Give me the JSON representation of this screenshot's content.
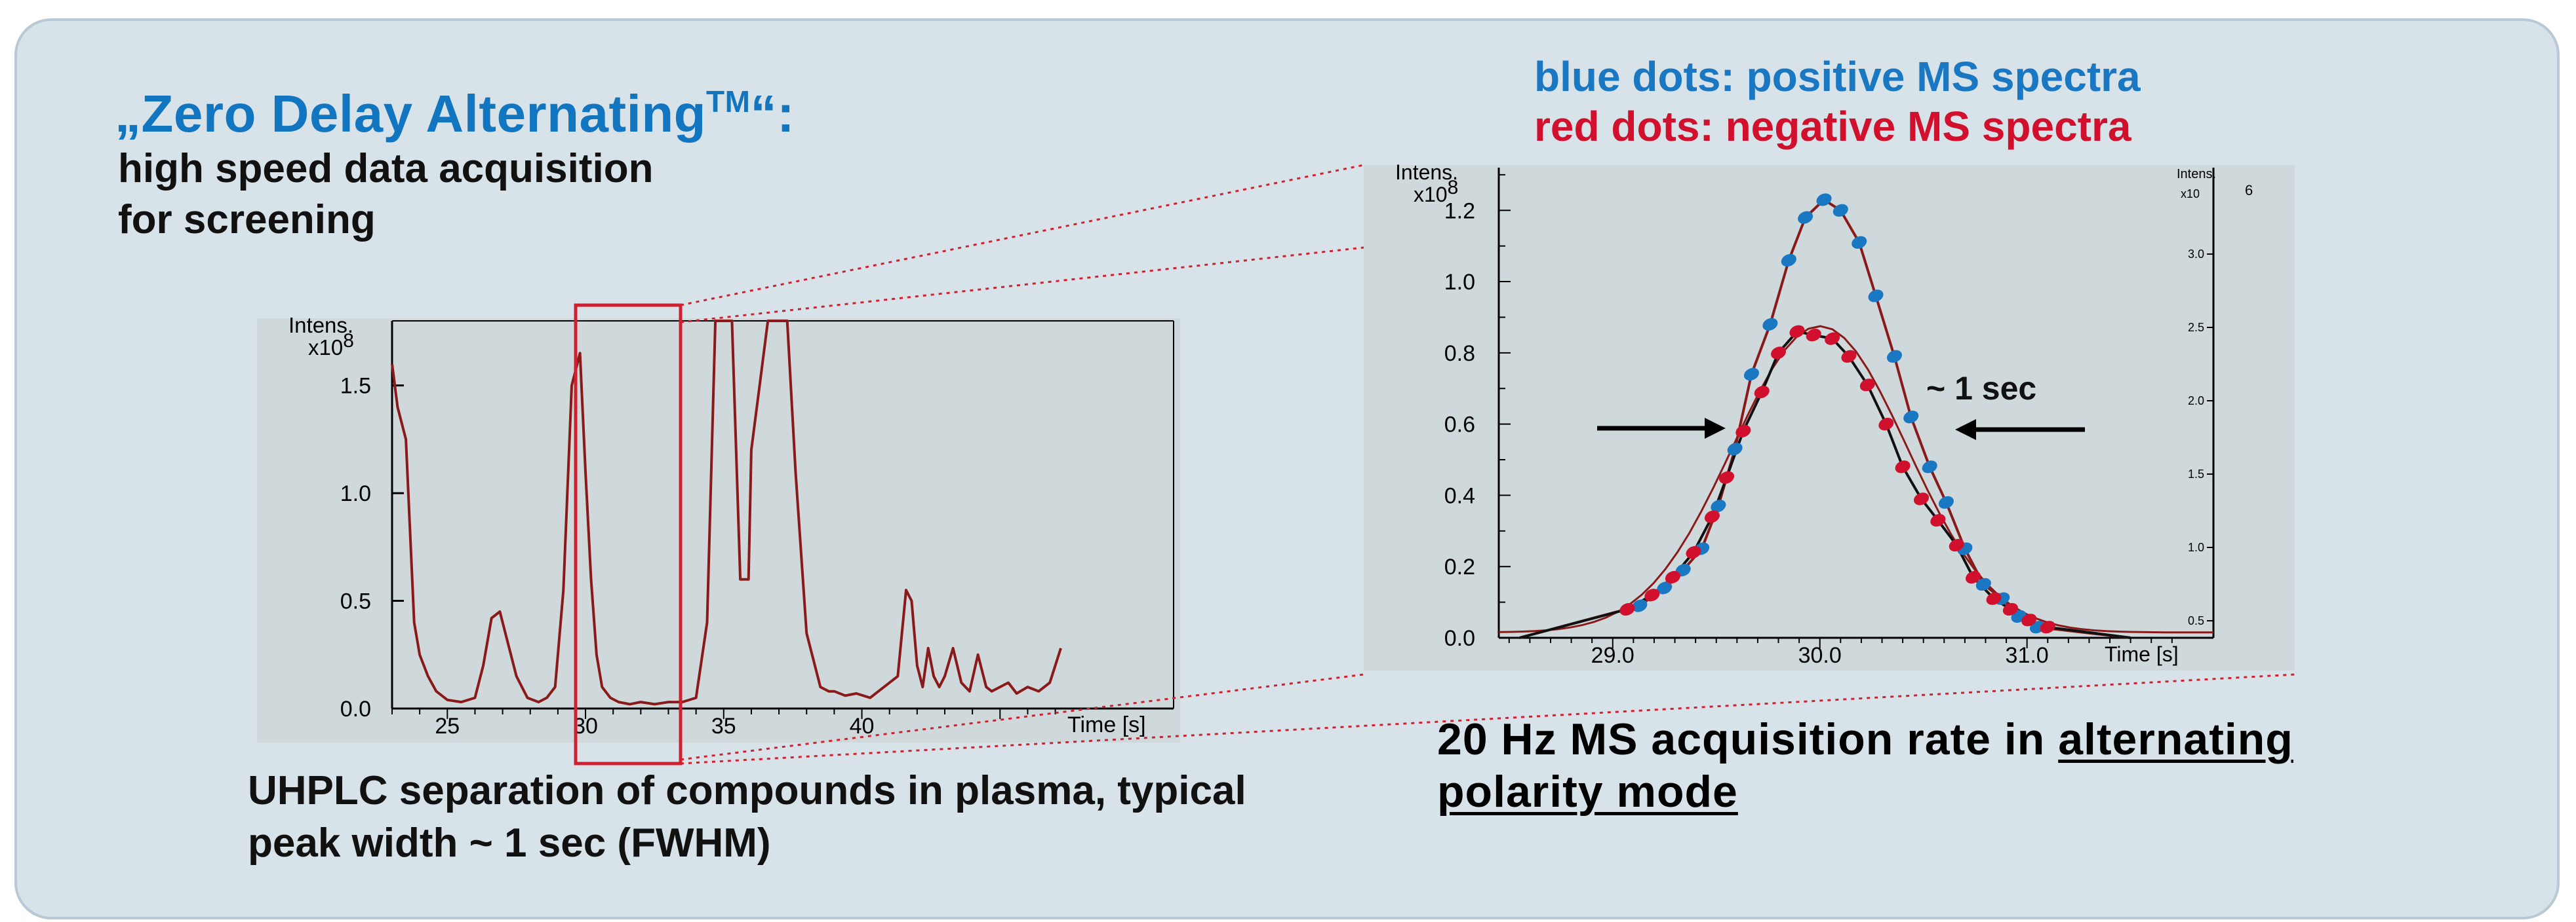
{
  "title": {
    "main_prefix": "„Zero Delay Alternating",
    "main_tm": "TM",
    "main_suffix": "“:",
    "line1": "high speed data acquisition",
    "line2": "for screening"
  },
  "legend": {
    "blue": "blue dots: positive MS spectra",
    "red": "red dots: negative MS spectra"
  },
  "caption_left": {
    "line1": "UHPLC separation of compounds in plasma, typical",
    "line2": "peak width ~ 1 sec (FWHM)"
  },
  "caption_right": {
    "pre": "20 Hz MS acquisition rate in ",
    "ul1": "alternating",
    "ul2": "polarity mode"
  },
  "colors": {
    "trace": "#8a1a1a",
    "zoom_box": "#d02030",
    "blue_dots": "#1a78c2",
    "red_dots": "#d0102c",
    "plot_bg": "#cfd9db"
  },
  "chart_data": [
    {
      "type": "line",
      "ylabel": "Intens.",
      "y_multiplier": "x10",
      "y_exponent": "8",
      "xlabel": "Time [s]",
      "xlim": [
        23,
        56.5
      ],
      "ylim": [
        0,
        1.8
      ],
      "x_ticks": [
        "25",
        "30",
        "35",
        "40"
      ],
      "y_ticks": [
        "0.0",
        "0.5",
        "1.0",
        "1.5"
      ],
      "series": [
        {
          "x": [
            23.0,
            23.2,
            23.5,
            23.8,
            24.0,
            24.3,
            24.6,
            25.0,
            25.5,
            26.0,
            26.3,
            26.6,
            26.9,
            27.2,
            27.5,
            27.9,
            28.3,
            28.6,
            28.9,
            29.2,
            29.5,
            29.8,
            30.0,
            30.2,
            30.4,
            30.6,
            30.9,
            31.2,
            31.6,
            32.0,
            32.5,
            33.0,
            33.5,
            34.0,
            34.4,
            34.7,
            34.9,
            35.1,
            35.3,
            35.6,
            35.9,
            36.0,
            36.3,
            36.6,
            37.0,
            37.3,
            37.6,
            38.0,
            38.5,
            38.8,
            39.0,
            39.4,
            39.8,
            40.3,
            40.8,
            41.3,
            41.6,
            41.8,
            42.0,
            42.2,
            42.4,
            42.6,
            42.8,
            43.0,
            43.3,
            43.6,
            43.9,
            44.2,
            44.5,
            44.7,
            45.0,
            45.3,
            45.6,
            46.0,
            46.4,
            46.8,
            47.2
          ],
          "y": [
            1.6,
            1.4,
            1.25,
            0.4,
            0.25,
            0.15,
            0.08,
            0.04,
            0.03,
            0.05,
            0.2,
            0.42,
            0.45,
            0.3,
            0.15,
            0.05,
            0.03,
            0.05,
            0.1,
            0.55,
            1.5,
            1.65,
            1.1,
            0.6,
            0.25,
            0.1,
            0.05,
            0.03,
            0.02,
            0.03,
            0.02,
            0.03,
            0.03,
            0.05,
            0.4,
            1.8,
            1.8,
            1.8,
            1.8,
            0.6,
            0.6,
            1.2,
            1.5,
            1.8,
            1.8,
            1.8,
            1.1,
            0.35,
            0.1,
            0.08,
            0.08,
            0.06,
            0.07,
            0.05,
            0.1,
            0.15,
            0.55,
            0.5,
            0.2,
            0.1,
            0.28,
            0.15,
            0.1,
            0.15,
            0.28,
            0.12,
            0.08,
            0.25,
            0.1,
            0.08,
            0.1,
            0.12,
            0.07,
            0.1,
            0.08,
            0.12,
            0.28
          ]
        }
      ]
    },
    {
      "type": "scatter",
      "ylabel": "Intens.",
      "y_multiplier": "x10",
      "y_exponent": "8",
      "xlabel": "Time [s]",
      "xlim": [
        28.45,
        31.9
      ],
      "ylim": [
        0,
        1.32
      ],
      "x_ticks": [
        "29.0",
        "30.0",
        "31.0"
      ],
      "y_ticks": [
        "0.0",
        "0.2",
        "0.4",
        "0.6",
        "0.8",
        "1.0",
        "1.2"
      ],
      "right_axis": {
        "label": "Intens.",
        "multiplier": "x10",
        "exponent": "6",
        "ticks": [
          "0.5",
          "1.0",
          "1.5",
          "2.0",
          "2.5",
          "3.0"
        ]
      },
      "annotation": "~ 1 sec",
      "series": [
        {
          "x": [
            29.13,
            29.25,
            29.34,
            29.43,
            29.51,
            29.59,
            29.67,
            29.76,
            29.85,
            29.93,
            30.02,
            30.1,
            30.19,
            30.27,
            30.36,
            30.44,
            30.53,
            30.61,
            30.7,
            30.79,
            30.88,
            30.96,
            31.05
          ],
          "y": [
            0.09,
            0.14,
            0.19,
            0.25,
            0.37,
            0.53,
            0.74,
            0.88,
            1.06,
            1.18,
            1.23,
            1.2,
            1.11,
            0.96,
            0.79,
            0.62,
            0.48,
            0.38,
            0.25,
            0.15,
            0.11,
            0.06,
            0.03
          ]
        },
        {
          "x": [
            29.07,
            29.19,
            29.29,
            29.39,
            29.48,
            29.55,
            29.63,
            29.72,
            29.8,
            29.89,
            29.97,
            30.06,
            30.14,
            30.23,
            30.32,
            30.4,
            30.49,
            30.57,
            30.66,
            30.74,
            30.84,
            30.92,
            31.01,
            31.1
          ],
          "y": [
            0.08,
            0.12,
            0.17,
            0.24,
            0.34,
            0.45,
            0.58,
            0.69,
            0.8,
            0.86,
            0.85,
            0.84,
            0.79,
            0.71,
            0.6,
            0.48,
            0.39,
            0.33,
            0.26,
            0.17,
            0.11,
            0.08,
            0.05,
            0.03
          ]
        }
      ]
    }
  ]
}
